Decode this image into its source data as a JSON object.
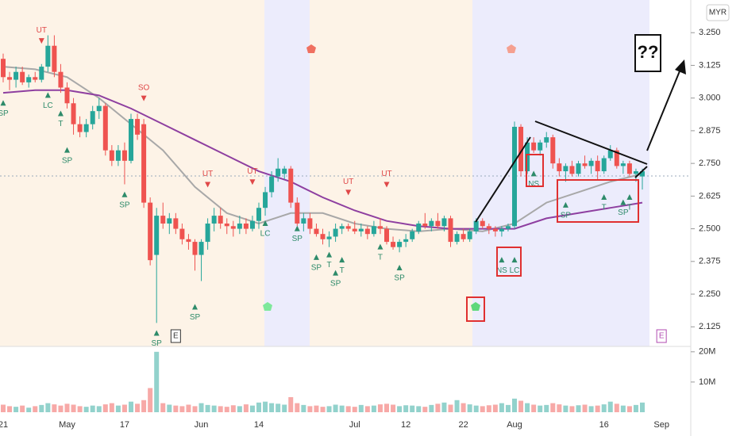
{
  "chart_data": {
    "type": "candlestick",
    "currency": "MYR",
    "callout": "??",
    "up_color": "#26a69a",
    "down_color": "#ef5350",
    "categories": [
      "21",
      null,
      null,
      null,
      null,
      null,
      null,
      null,
      null,
      null,
      "May",
      null,
      null,
      null,
      null,
      null,
      null,
      null,
      null,
      "17",
      null,
      null,
      null,
      null,
      null,
      null,
      null,
      null,
      null,
      null,
      null,
      "Jun",
      null,
      null,
      null,
      null,
      null,
      null,
      null,
      null,
      "14",
      null,
      null,
      null,
      null,
      null,
      null,
      null,
      null,
      null,
      null,
      null,
      null,
      null,
      null,
      "Jul",
      null,
      null,
      null,
      null,
      null,
      null,
      null,
      "12",
      null,
      null,
      null,
      null,
      null,
      null,
      null,
      null,
      "22",
      null,
      null,
      null,
      null,
      null,
      null,
      null,
      "Aug",
      null,
      null,
      null,
      null,
      null,
      null,
      null,
      null,
      null,
      null,
      null,
      null,
      null,
      "16",
      null,
      null,
      null,
      null,
      null,
      null,
      null,
      null,
      "Sep"
    ],
    "candles": [
      [
        3.15,
        3.17,
        3.06,
        3.08
      ],
      [
        3.08,
        3.1,
        3.03,
        3.07
      ],
      [
        3.07,
        3.12,
        3.04,
        3.1
      ],
      [
        3.1,
        3.12,
        3.05,
        3.06
      ],
      [
        3.06,
        3.09,
        3.04,
        3.08
      ],
      [
        3.08,
        3.1,
        3.06,
        3.07
      ],
      [
        3.07,
        3.13,
        3.06,
        3.12
      ],
      [
        3.12,
        3.24,
        3.1,
        3.2
      ],
      [
        3.2,
        3.24,
        3.08,
        3.1
      ],
      [
        3.1,
        3.13,
        3.02,
        3.04
      ],
      [
        3.04,
        3.06,
        2.96,
        2.98
      ],
      [
        2.98,
        3.0,
        2.86,
        2.9
      ],
      [
        2.9,
        2.93,
        2.85,
        2.87
      ],
      [
        2.87,
        2.92,
        2.85,
        2.9
      ],
      [
        2.9,
        2.97,
        2.88,
        2.95
      ],
      [
        2.95,
        3.0,
        2.92,
        2.97
      ],
      [
        2.97,
        2.98,
        2.78,
        2.8
      ],
      [
        2.8,
        2.82,
        2.74,
        2.76
      ],
      [
        2.76,
        2.82,
        2.74,
        2.8
      ],
      [
        2.8,
        2.83,
        2.67,
        2.76
      ],
      [
        2.76,
        2.94,
        2.75,
        2.92
      ],
      [
        2.92,
        2.94,
        2.84,
        2.86
      ],
      [
        2.9,
        2.92,
        2.58,
        2.6
      ],
      [
        2.6,
        2.62,
        2.36,
        2.38
      ],
      [
        2.4,
        2.58,
        2.14,
        2.55
      ],
      [
        2.55,
        2.6,
        2.5,
        2.52
      ],
      [
        2.52,
        2.56,
        2.48,
        2.54
      ],
      [
        2.54,
        2.56,
        2.48,
        2.5
      ],
      [
        2.5,
        2.52,
        2.44,
        2.46
      ],
      [
        2.46,
        2.48,
        2.42,
        2.45
      ],
      [
        2.45,
        2.46,
        2.34,
        2.4
      ],
      [
        2.4,
        2.46,
        2.3,
        2.45
      ],
      [
        2.45,
        2.54,
        2.42,
        2.52
      ],
      [
        2.52,
        2.58,
        2.49,
        2.55
      ],
      [
        2.55,
        2.58,
        2.5,
        2.52
      ],
      [
        2.52,
        2.54,
        2.48,
        2.51
      ],
      [
        2.51,
        2.53,
        2.47,
        2.5
      ],
      [
        2.5,
        2.55,
        2.48,
        2.52
      ],
      [
        2.52,
        2.54,
        2.48,
        2.5
      ],
      [
        2.5,
        2.55,
        2.49,
        2.53
      ],
      [
        2.53,
        2.6,
        2.5,
        2.58
      ],
      [
        2.58,
        2.66,
        2.55,
        2.64
      ],
      [
        2.64,
        2.72,
        2.62,
        2.7
      ],
      [
        2.7,
        2.77,
        2.68,
        2.73
      ],
      [
        2.71,
        2.74,
        2.69,
        2.73
      ],
      [
        2.73,
        2.74,
        2.58,
        2.6
      ],
      [
        2.6,
        2.62,
        2.51,
        2.52
      ],
      [
        2.52,
        2.56,
        2.49,
        2.54
      ],
      [
        2.54,
        2.56,
        2.48,
        2.5
      ],
      [
        2.5,
        2.52,
        2.47,
        2.48
      ],
      [
        2.48,
        2.5,
        2.44,
        2.46
      ],
      [
        2.46,
        2.49,
        2.43,
        2.47
      ],
      [
        2.47,
        2.52,
        2.45,
        2.5
      ],
      [
        2.5,
        2.52,
        2.48,
        2.51
      ],
      [
        2.51,
        2.52,
        2.49,
        2.5
      ],
      [
        2.5,
        2.53,
        2.48,
        2.49
      ],
      [
        2.49,
        2.52,
        2.47,
        2.5
      ],
      [
        2.5,
        2.51,
        2.46,
        2.48
      ],
      [
        2.48,
        2.53,
        2.47,
        2.51
      ],
      [
        2.51,
        2.54,
        2.48,
        2.5
      ],
      [
        2.5,
        2.51,
        2.44,
        2.45
      ],
      [
        2.45,
        2.47,
        2.42,
        2.43
      ],
      [
        2.43,
        2.46,
        2.41,
        2.45
      ],
      [
        2.45,
        2.48,
        2.43,
        2.46
      ],
      [
        2.46,
        2.5,
        2.45,
        2.49
      ],
      [
        2.49,
        2.53,
        2.48,
        2.52
      ],
      [
        2.52,
        2.56,
        2.5,
        2.51
      ],
      [
        2.51,
        2.54,
        2.49,
        2.53
      ],
      [
        2.53,
        2.56,
        2.5,
        2.51
      ],
      [
        2.51,
        2.55,
        2.49,
        2.54
      ],
      [
        2.54,
        2.55,
        2.43,
        2.45
      ],
      [
        2.45,
        2.49,
        2.44,
        2.48
      ],
      [
        2.48,
        2.5,
        2.45,
        2.46
      ],
      [
        2.46,
        2.5,
        2.45,
        2.49
      ],
      [
        2.49,
        2.54,
        2.48,
        2.53
      ],
      [
        2.53,
        2.54,
        2.5,
        2.51
      ],
      [
        2.51,
        2.52,
        2.48,
        2.5
      ],
      [
        2.5,
        2.51,
        2.47,
        2.49
      ],
      [
        2.49,
        2.51,
        2.47,
        2.5
      ],
      [
        2.5,
        2.52,
        2.49,
        2.51
      ],
      [
        2.51,
        2.91,
        2.5,
        2.89
      ],
      [
        2.89,
        2.9,
        2.7,
        2.72
      ],
      [
        2.72,
        2.85,
        2.71,
        2.83
      ],
      [
        2.83,
        2.85,
        2.79,
        2.8
      ],
      [
        2.8,
        2.84,
        2.78,
        2.83
      ],
      [
        2.83,
        2.87,
        2.81,
        2.85
      ],
      [
        2.85,
        2.86,
        2.73,
        2.75
      ],
      [
        2.75,
        2.77,
        2.7,
        2.72
      ],
      [
        2.72,
        2.75,
        2.68,
        2.74
      ],
      [
        2.74,
        2.76,
        2.7,
        2.71
      ],
      [
        2.71,
        2.76,
        2.7,
        2.75
      ],
      [
        2.75,
        2.78,
        2.73,
        2.74
      ],
      [
        2.74,
        2.77,
        2.71,
        2.76
      ],
      [
        2.76,
        2.78,
        2.69,
        2.72
      ],
      [
        2.72,
        2.78,
        2.71,
        2.77
      ],
      [
        2.77,
        2.82,
        2.76,
        2.8
      ],
      [
        2.8,
        2.81,
        2.73,
        2.74
      ],
      [
        2.74,
        2.76,
        2.71,
        2.75
      ],
      [
        2.75,
        2.76,
        2.7,
        2.71
      ],
      [
        2.71,
        2.73,
        2.68,
        2.72
      ],
      [
        2.7,
        2.73,
        2.65,
        2.72
      ],
      null,
      null,
      null
    ],
    "volume": [
      2.5,
      2,
      1.8,
      2.2,
      1.5,
      2,
      2.4,
      3,
      2.6,
      2.2,
      2.8,
      2.5,
      2,
      1.8,
      2.2,
      2,
      2.6,
      3,
      2.2,
      2.5,
      3.5,
      2.8,
      4,
      8,
      20,
      3,
      2.5,
      2.2,
      2,
      2.5,
      2,
      3,
      2.4,
      2.2,
      2,
      1.8,
      2.3,
      2,
      2.6,
      2.2,
      3.2,
      3.5,
      3,
      2.8,
      2.5,
      5,
      3,
      2.4,
      2,
      2.2,
      1.8,
      2,
      2.5,
      2.2,
      2,
      1.8,
      2.4,
      2,
      2.2,
      2.6,
      2.8,
      2.5,
      2,
      2.3,
      2.2,
      2,
      1.8,
      2.4,
      2.8,
      3.2,
      2.5,
      4,
      3,
      2.6,
      2.2,
      2,
      2.3,
      2.5,
      3,
      2.4,
      4.5,
      3.8,
      3,
      2.5,
      2.2,
      2.4,
      3,
      2.6,
      2.2,
      2,
      2.3,
      2.5,
      2,
      2.2,
      2.6,
      3.5,
      2.8,
      2.2,
      2,
      2.4,
      3.2,
      null,
      null,
      null
    ],
    "overlays": [
      {
        "color": "#a8a8a8",
        "x": [
          0,
          5,
          10,
          15,
          20,
          25,
          30,
          35,
          40,
          45,
          50,
          55,
          60,
          65,
          70,
          75,
          80,
          85,
          90,
          95,
          100
        ],
        "values": [
          3.12,
          3.11,
          3.08,
          3.0,
          2.9,
          2.8,
          2.66,
          2.56,
          2.52,
          2.56,
          2.56,
          2.52,
          2.5,
          2.49,
          2.5,
          2.49,
          2.52,
          2.6,
          2.64,
          2.68,
          2.71
        ]
      },
      {
        "color": "#8e3fa0",
        "x": [
          0,
          5,
          10,
          15,
          20,
          25,
          30,
          35,
          40,
          45,
          50,
          55,
          60,
          65,
          70,
          75,
          80,
          85,
          90,
          95,
          100
        ],
        "values": [
          3.02,
          3.03,
          3.03,
          3.01,
          2.96,
          2.9,
          2.84,
          2.78,
          2.72,
          2.68,
          2.62,
          2.57,
          2.53,
          2.51,
          2.5,
          2.5,
          2.5,
          2.54,
          2.56,
          2.58,
          2.6
        ]
      }
    ],
    "annotations": [
      {
        "text": "SP",
        "i": 0,
        "price": 2.98,
        "dir": "up"
      },
      {
        "text": "UT",
        "i": 6,
        "price": 3.22,
        "dir": "down"
      },
      {
        "text": "LC",
        "i": 7,
        "price": 3.01,
        "dir": "up"
      },
      {
        "text": "T",
        "i": 9,
        "price": 2.94,
        "dir": "up"
      },
      {
        "text": "SP",
        "i": 10,
        "price": 2.8,
        "dir": "up"
      },
      {
        "text": "SP",
        "i": 19,
        "price": 2.63,
        "dir": "up"
      },
      {
        "text": "SO",
        "i": 22,
        "price": 3.0,
        "dir": "down"
      },
      {
        "text": "SP",
        "i": 24,
        "price": 2.1,
        "dir": "up"
      },
      {
        "text": "SP",
        "i": 30,
        "price": 2.2,
        "dir": "up"
      },
      {
        "text": "UT",
        "i": 32,
        "price": 2.67,
        "dir": "down"
      },
      {
        "text": "UT",
        "i": 39,
        "price": 2.68,
        "dir": "down"
      },
      {
        "text": "LC",
        "i": 41,
        "price": 2.52,
        "dir": "up"
      },
      {
        "text": "SP",
        "i": 46,
        "price": 2.5,
        "dir": "up"
      },
      {
        "text": "SP",
        "i": 49,
        "price": 2.39,
        "dir": "up"
      },
      {
        "text": "T",
        "i": 51,
        "price": 2.4,
        "dir": "up"
      },
      {
        "text": "SP",
        "i": 52,
        "price": 2.33,
        "dir": "up"
      },
      {
        "text": "T",
        "i": 53,
        "price": 2.38,
        "dir": "up"
      },
      {
        "text": "UT",
        "i": 54,
        "price": 2.64,
        "dir": "down"
      },
      {
        "text": "T",
        "i": 59,
        "price": 2.43,
        "dir": "up"
      },
      {
        "text": "UT",
        "i": 60,
        "price": 2.67,
        "dir": "down"
      },
      {
        "text": "SP",
        "i": 62,
        "price": 2.35,
        "dir": "up"
      },
      {
        "text": "NS",
        "i": 78,
        "price": 2.38,
        "dir": "up"
      },
      {
        "text": "LC",
        "i": 80,
        "price": 2.38,
        "dir": "up"
      },
      {
        "text": "NS",
        "i": 83,
        "price": 2.71,
        "dir": "up"
      },
      {
        "text": "SP",
        "i": 88,
        "price": 2.59,
        "dir": "up"
      },
      {
        "text": "T",
        "i": 94,
        "price": 2.62,
        "dir": "up"
      },
      {
        "text": "SP",
        "i": 97,
        "price": 2.6,
        "dir": "up"
      },
      {
        "text": "T",
        "i": 98,
        "price": 2.62,
        "dir": "up"
      }
    ],
    "events": [
      {
        "text": "E",
        "i": 27
      },
      {
        "text": "E",
        "i": 103
      }
    ],
    "ylim": [
      2.05,
      3.375
    ],
    "yticks": [
      {
        "value": 3.25,
        "label": "3.250"
      },
      {
        "value": 3.125,
        "label": "3.125"
      },
      {
        "value": 3,
        "label": "3.000"
      },
      {
        "value": 2.875,
        "label": "2.875"
      },
      {
        "value": 2.75,
        "label": "2.750"
      },
      {
        "value": 2.625,
        "label": "2.625"
      },
      {
        "value": 2.5,
        "label": "2.500"
      },
      {
        "value": 2.375,
        "label": "2.375"
      },
      {
        "value": 2.25,
        "label": "2.250"
      },
      {
        "value": 2.125,
        "label": "2.125"
      }
    ],
    "y2lim": [
      0,
      21
    ],
    "y2ticks": [
      {
        "value": 20,
        "label": "20M"
      },
      {
        "value": 10,
        "label": "10M"
      }
    ]
  }
}
